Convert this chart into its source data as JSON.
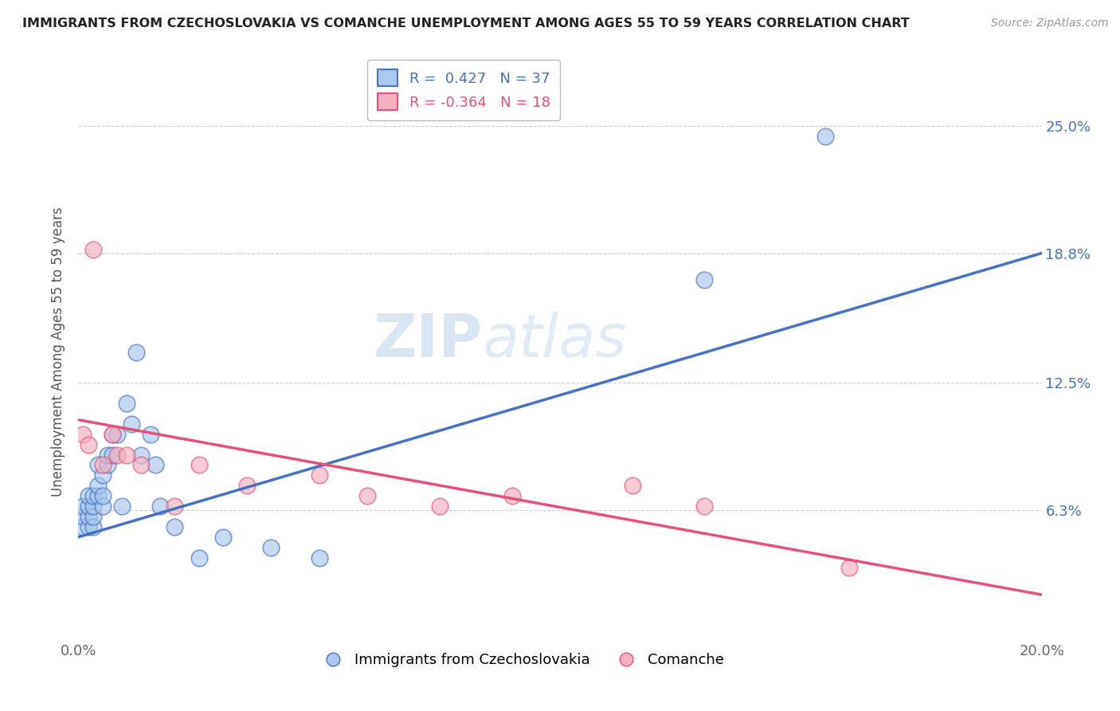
{
  "title": "IMMIGRANTS FROM CZECHOSLOVAKIA VS COMANCHE UNEMPLOYMENT AMONG AGES 55 TO 59 YEARS CORRELATION CHART",
  "source": "Source: ZipAtlas.com",
  "ylabel": "Unemployment Among Ages 55 to 59 years",
  "xlim": [
    0.0,
    0.2
  ],
  "ylim": [
    0.0,
    0.28
  ],
  "ytick_right_labels": [
    "25.0%",
    "18.8%",
    "12.5%",
    "6.3%"
  ],
  "ytick_right_values": [
    0.25,
    0.188,
    0.125,
    0.063
  ],
  "r_blue": 0.427,
  "n_blue": 37,
  "r_pink": -0.364,
  "n_pink": 18,
  "blue_color": "#A8C8EE",
  "pink_color": "#F4B0C0",
  "blue_line_color": "#4472C4",
  "pink_line_color": "#E8507A",
  "legend_label_blue": "Immigrants from Czechoslovakia",
  "legend_label_pink": "Comanche",
  "watermark_zip": "ZIP",
  "watermark_atlas": "atlas",
  "blue_scatter_x": [
    0.001,
    0.001,
    0.001,
    0.002,
    0.002,
    0.002,
    0.002,
    0.003,
    0.003,
    0.003,
    0.003,
    0.004,
    0.004,
    0.004,
    0.005,
    0.005,
    0.005,
    0.006,
    0.006,
    0.007,
    0.007,
    0.008,
    0.009,
    0.01,
    0.011,
    0.012,
    0.013,
    0.015,
    0.016,
    0.017,
    0.02,
    0.025,
    0.03,
    0.04,
    0.05,
    0.13,
    0.155
  ],
  "blue_scatter_y": [
    0.055,
    0.06,
    0.065,
    0.055,
    0.06,
    0.065,
    0.07,
    0.055,
    0.06,
    0.065,
    0.07,
    0.07,
    0.075,
    0.085,
    0.065,
    0.07,
    0.08,
    0.085,
    0.09,
    0.09,
    0.1,
    0.1,
    0.065,
    0.115,
    0.105,
    0.14,
    0.09,
    0.1,
    0.085,
    0.065,
    0.055,
    0.04,
    0.05,
    0.045,
    0.04,
    0.175,
    0.245
  ],
  "pink_scatter_x": [
    0.001,
    0.002,
    0.003,
    0.005,
    0.007,
    0.008,
    0.01,
    0.013,
    0.02,
    0.025,
    0.035,
    0.05,
    0.06,
    0.075,
    0.09,
    0.115,
    0.13,
    0.16
  ],
  "pink_scatter_y": [
    0.1,
    0.095,
    0.19,
    0.085,
    0.1,
    0.09,
    0.09,
    0.085,
    0.065,
    0.085,
    0.075,
    0.08,
    0.07,
    0.065,
    0.07,
    0.075,
    0.065,
    0.035
  ],
  "blue_line_x0": 0.0,
  "blue_line_y0": 0.05,
  "blue_line_x1": 0.2,
  "blue_line_y1": 0.188,
  "pink_line_x0": 0.0,
  "pink_line_y0": 0.107,
  "pink_line_x1": 0.2,
  "pink_line_y1": 0.022
}
